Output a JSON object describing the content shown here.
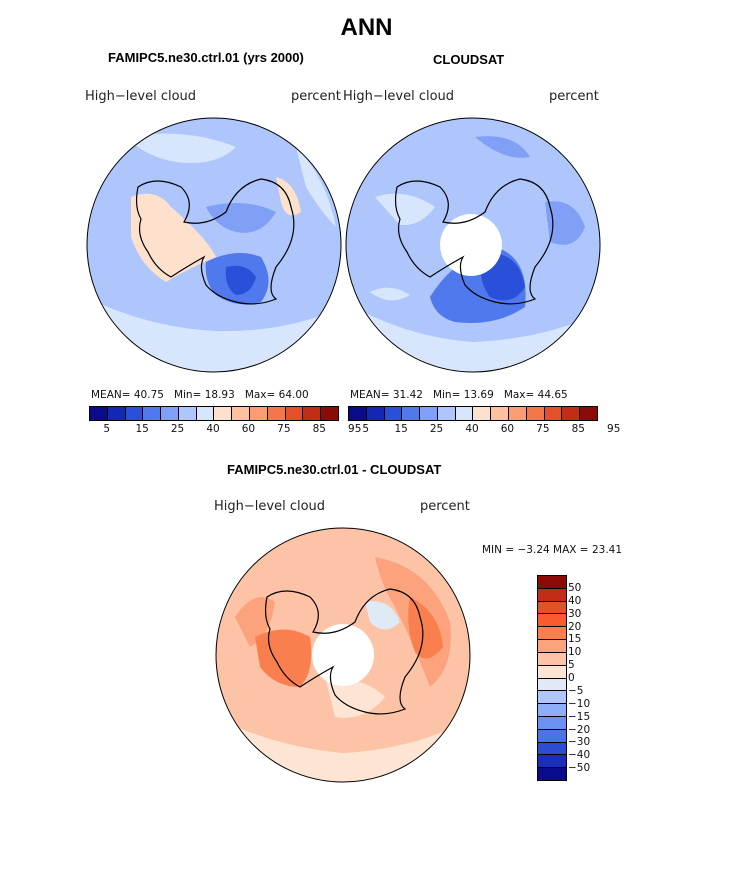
{
  "figure": {
    "title": "ANN",
    "colors": {
      "abs_scale": [
        "#0a0a8c",
        "#1326b4",
        "#2a4fd8",
        "#4f79ec",
        "#7fa0f5",
        "#aec6fb",
        "#d8e6fd",
        "#fde1cd",
        "#fdc1a0",
        "#fa9d72",
        "#f4774c",
        "#e4502a",
        "#c22d17",
        "#8c0a08"
      ],
      "diff_scale": [
        "#8c0a08",
        "#c22d17",
        "#e4502a",
        "#fa5a2d",
        "#fa7f4f",
        "#fca27c",
        "#fdc3a6",
        "#fde4d3",
        "#dfeaf6",
        "#aec6fb",
        "#8eaef9",
        "#6b92f2",
        "#4a73e6",
        "#2b4dd4",
        "#1a2fb8",
        "#0a0a8c"
      ],
      "coast": "#000000"
    },
    "left_panel": {
      "subtitle": "FAMIPC5.ne30.ctrl.01 (yrs 2000)",
      "variable": "High−level cloud",
      "units": "percent",
      "stats": {
        "mean_label": "MEAN=",
        "mean": "40.75",
        "min_label": "Min=",
        "min": "18.93",
        "max_label": "Max=",
        "max": "64.00"
      },
      "colorbar_ticks": [
        "5",
        "15",
        "25",
        "40",
        "60",
        "75",
        "85",
        "95"
      ]
    },
    "right_panel": {
      "subtitle": "CLOUDSAT",
      "variable": "High−level cloud",
      "units": "percent",
      "stats": {
        "mean_label": "MEAN=",
        "mean": "31.42",
        "min_label": "Min=",
        "min": "13.69",
        "max_label": "Max=",
        "max": "44.65"
      },
      "colorbar_ticks": [
        "5",
        "15",
        "25",
        "40",
        "60",
        "75",
        "85",
        "95"
      ]
    },
    "diff_panel": {
      "subtitle": "FAMIPC5.ne30.ctrl.01 - CLOUDSAT",
      "variable": "High−level cloud",
      "units": "percent",
      "stats": {
        "min_label": "MIN =",
        "min": "−3.24",
        "max_label": "MAX =",
        "max": "23.41"
      },
      "colorbar_ticks": [
        "50",
        "40",
        "30",
        "20",
        "15",
        "10",
        "5",
        "0",
        "−5",
        "−10",
        "−15",
        "−20",
        "−30",
        "−40",
        "−50"
      ]
    }
  }
}
